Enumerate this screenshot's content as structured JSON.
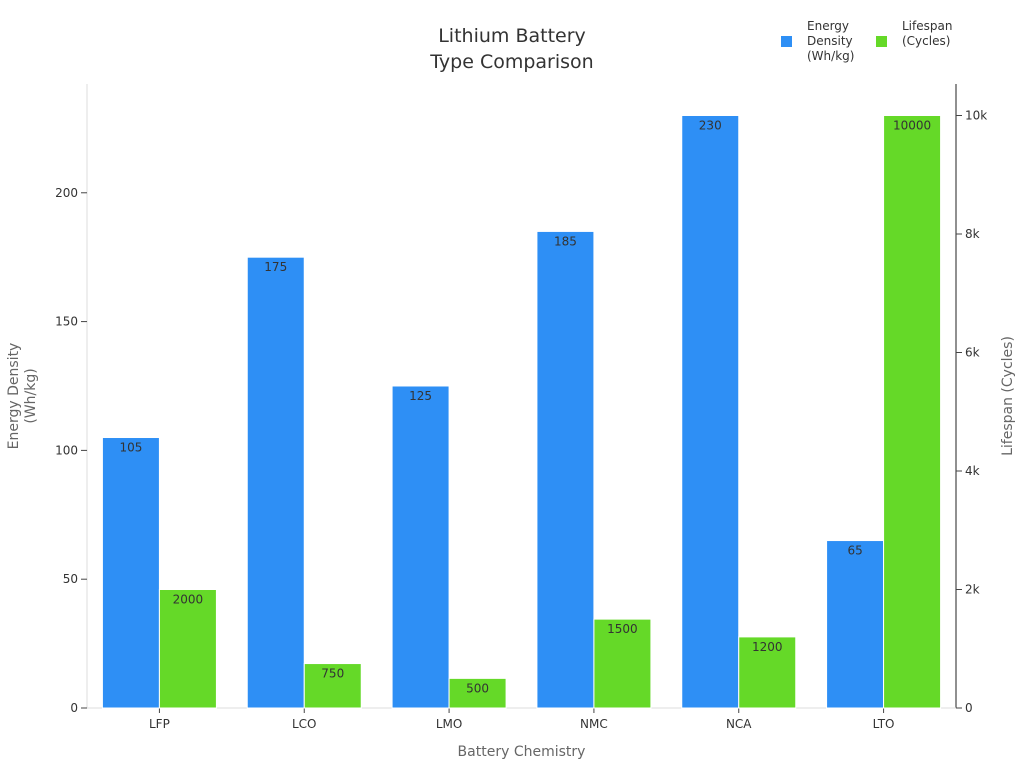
{
  "chart_data": {
    "type": "bar",
    "title": [
      "Lithium Battery",
      "Type Comparison"
    ],
    "xlabel": "Battery Chemistry",
    "ylabel": [
      "Energy Density",
      "(Wh/kg)"
    ],
    "y2label": "Lifespan (Cycles)",
    "categories": [
      "LFP",
      "LCO",
      "LMO",
      "NMC",
      "NCA",
      "LTO"
    ],
    "series": [
      {
        "name": [
          "Energy",
          "Density",
          "(Wh/kg)"
        ],
        "axis": "left",
        "color": "#2e8ff5",
        "values": [
          105,
          175,
          125,
          185,
          230,
          65
        ],
        "labels": [
          "105",
          "175",
          "125",
          "185",
          "230",
          "65"
        ]
      },
      {
        "name": [
          "Lifespan",
          "(Cycles)"
        ],
        "axis": "right",
        "color": "#65d928",
        "values": [
          2000,
          750,
          500,
          1500,
          1200,
          10000
        ],
        "labels": [
          "2000",
          "750",
          "500",
          "1500",
          "1200",
          "10000"
        ]
      }
    ],
    "ylim": [
      0,
      240
    ],
    "y2lim": [
      0,
      10500
    ],
    "yticks": [
      0,
      50,
      100,
      150,
      200
    ],
    "ytick_labels": [
      "0",
      "50",
      "100",
      "150",
      "200"
    ],
    "y2ticks": [
      0,
      2000,
      4000,
      6000,
      8000,
      10000
    ],
    "y2tick_labels": [
      "0",
      "2k",
      "4k",
      "6k",
      "8k",
      "10k"
    ],
    "grid": false,
    "legend_position": "top-right"
  }
}
